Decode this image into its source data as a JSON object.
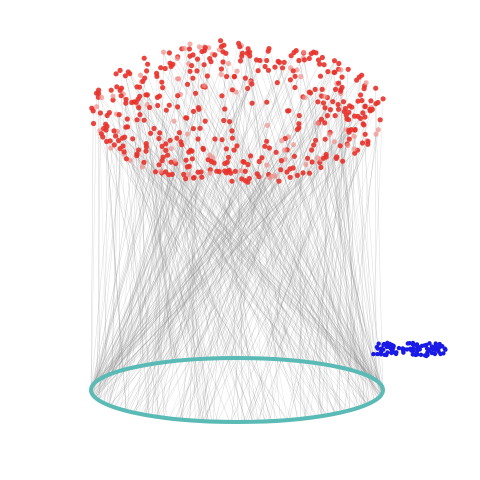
{
  "diagram": {
    "type": "bipartite-network-hive",
    "background_color": "#ffffff",
    "top_group": {
      "shape": "ellipse-cloud",
      "node_color": "#e8322a",
      "node_color_faded": "#f08f8a",
      "node_count": 460
    },
    "bottom_ring": {
      "shape": "ellipse-ring",
      "stroke_color": "#5abab5"
    },
    "side_cluster": {
      "node_color": "#1a1ae6",
      "node_count": 90
    },
    "edges": {
      "color": "#8c8c8c",
      "count": 520
    }
  }
}
